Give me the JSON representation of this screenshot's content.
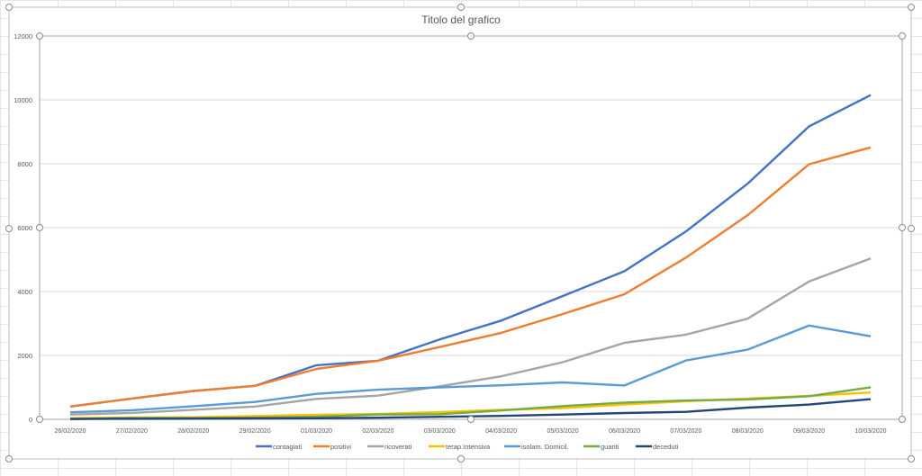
{
  "chart_data": {
    "type": "line",
    "title": "Titolo del grafico",
    "xlabel": "",
    "ylabel": "",
    "ylim": [
      0,
      12000
    ],
    "yticks": [
      0,
      2000,
      4000,
      6000,
      8000,
      10000,
      12000
    ],
    "grid": true,
    "legend_position": "bottom",
    "categories": [
      "26/02/2020",
      "27/02/2020",
      "28/02/2020",
      "29/02/2020",
      "01/03/2020",
      "02/03/2020",
      "03/03/2020",
      "04/03/2020",
      "05/03/2020",
      "06/03/2020",
      "07/03/2020",
      "08/03/2020",
      "09/03/2020",
      "10/03/2020"
    ],
    "series": [
      {
        "name": "contagiati",
        "color": "#4472C4",
        "values": [
          400,
          650,
          888,
          1049,
          1694,
          1835,
          2502,
          3089,
          3858,
          4636,
          5883,
          7375,
          9172,
          10149
        ]
      },
      {
        "name": "positivi",
        "color": "#ED7D31",
        "values": [
          400,
          650,
          888,
          1049,
          1577,
          1835,
          2263,
          2706,
          3296,
          3916,
          5061,
          6387,
          7985,
          8514
        ]
      },
      {
        "name": "ricoverati",
        "color": "#A5A5A5",
        "values": [
          150,
          200,
          300,
          401,
          639,
          742,
          1034,
          1346,
          1790,
          2394,
          2651,
          3150,
          4316,
          5038
        ]
      },
      {
        "name": "terap.Intensiva",
        "color": "#FFC000",
        "values": [
          36,
          56,
          64,
          105,
          140,
          166,
          229,
          295,
          351,
          462,
          567,
          650,
          733,
          840
        ]
      },
      {
        "name": "isolam. Domicil.",
        "color": "#5B9BD5",
        "values": [
          221,
          284,
          412,
          543,
          798,
          927,
          1000,
          1065,
          1155,
          1060,
          1843,
          2180,
          2936,
          2599
        ]
      },
      {
        "name": "guariti",
        "color": "#70AD47",
        "values": [
          3,
          45,
          46,
          50,
          83,
          149,
          160,
          276,
          414,
          523,
          589,
          622,
          724,
          1004
        ]
      },
      {
        "name": "deceduti",
        "color": "#264478",
        "values": [
          12,
          17,
          21,
          29,
          34,
          52,
          79,
          107,
          148,
          197,
          233,
          366,
          463,
          631
        ]
      }
    ]
  }
}
